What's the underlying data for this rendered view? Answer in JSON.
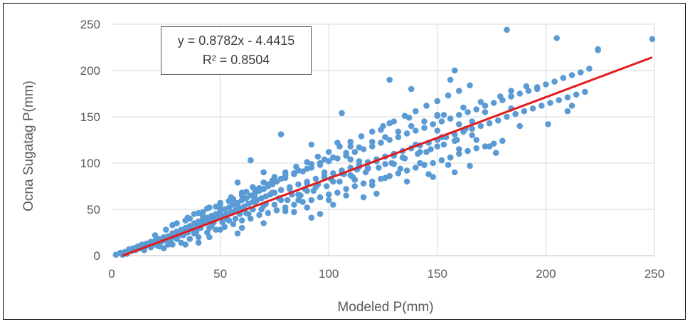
{
  "chart_data": {
    "type": "scatter",
    "title": "",
    "xlabel": "Modeled P(mm)",
    "ylabel": "Ocna Sugatag  P(mm)",
    "xlim": [
      0,
      250
    ],
    "ylim": [
      0,
      250
    ],
    "xticks": [
      "0",
      "50",
      "100",
      "150",
      "200",
      "250"
    ],
    "yticks": [
      "0",
      "50",
      "100",
      "150",
      "200",
      "250"
    ],
    "grid": true,
    "legend": "none",
    "colors": {
      "points": "#5b9bd5",
      "trendline": "#e31a1c",
      "grid": "#d9d9d9",
      "axis": "#bfbfbf"
    },
    "trendline": {
      "type": "linear",
      "slope": 0.8782,
      "intercept": -4.4415,
      "x_range": [
        5,
        249
      ],
      "equation": "y = 0.8782x - 4.4415",
      "r_squared": "R² = 0.8504"
    },
    "points": [
      [
        2,
        1
      ],
      [
        4,
        3
      ],
      [
        5,
        1
      ],
      [
        6,
        4
      ],
      [
        7,
        2
      ],
      [
        8,
        7
      ],
      [
        9,
        5
      ],
      [
        10,
        8
      ],
      [
        11,
        6
      ],
      [
        12,
        10
      ],
      [
        13,
        8
      ],
      [
        14,
        12
      ],
      [
        15,
        9
      ],
      [
        16,
        13
      ],
      [
        17,
        11
      ],
      [
        18,
        15
      ],
      [
        19,
        12
      ],
      [
        20,
        16
      ],
      [
        21,
        14
      ],
      [
        22,
        18
      ],
      [
        23,
        15
      ],
      [
        24,
        20
      ],
      [
        25,
        17
      ],
      [
        26,
        21
      ],
      [
        27,
        19
      ],
      [
        28,
        24
      ],
      [
        29,
        20
      ],
      [
        30,
        26
      ],
      [
        31,
        22
      ],
      [
        32,
        28
      ],
      [
        33,
        25
      ],
      [
        34,
        30
      ],
      [
        35,
        27
      ],
      [
        36,
        32
      ],
      [
        37,
        29
      ],
      [
        38,
        35
      ],
      [
        39,
        31
      ],
      [
        40,
        37
      ],
      [
        41,
        33
      ],
      [
        42,
        39
      ],
      [
        43,
        35
      ],
      [
        44,
        41
      ],
      [
        45,
        37
      ],
      [
        46,
        43
      ],
      [
        47,
        39
      ],
      [
        48,
        45
      ],
      [
        49,
        41
      ],
      [
        50,
        47
      ],
      [
        51,
        43
      ],
      [
        52,
        50
      ],
      [
        53,
        45
      ],
      [
        54,
        52
      ],
      [
        55,
        47
      ],
      [
        56,
        55
      ],
      [
        57,
        49
      ],
      [
        58,
        57
      ],
      [
        59,
        51
      ],
      [
        60,
        60
      ],
      [
        61,
        53
      ],
      [
        62,
        62
      ],
      [
        63,
        56
      ],
      [
        64,
        65
      ],
      [
        65,
        58
      ],
      [
        66,
        67
      ],
      [
        67,
        60
      ],
      [
        68,
        70
      ],
      [
        69,
        62
      ],
      [
        70,
        72
      ],
      [
        71,
        64
      ],
      [
        72,
        75
      ],
      [
        73,
        66
      ],
      [
        74,
        77
      ],
      [
        75,
        68
      ],
      [
        76,
        80
      ],
      [
        78,
        71
      ],
      [
        80,
        84
      ],
      [
        82,
        74
      ],
      [
        84,
        88
      ],
      [
        86,
        77
      ],
      [
        88,
        91
      ],
      [
        90,
        80
      ],
      [
        92,
        95
      ],
      [
        94,
        83
      ],
      [
        96,
        98
      ],
      [
        98,
        86
      ],
      [
        100,
        102
      ],
      [
        102,
        89
      ],
      [
        104,
        105
      ],
      [
        106,
        92
      ],
      [
        108,
        108
      ],
      [
        110,
        95
      ],
      [
        112,
        112
      ],
      [
        114,
        98
      ],
      [
        116,
        115
      ],
      [
        118,
        101
      ],
      [
        120,
        118
      ],
      [
        122,
        104
      ],
      [
        124,
        122
      ],
      [
        126,
        107
      ],
      [
        128,
        125
      ],
      [
        130,
        110
      ],
      [
        132,
        128
      ],
      [
        134,
        113
      ],
      [
        136,
        132
      ],
      [
        138,
        116
      ],
      [
        140,
        135
      ],
      [
        142,
        119
      ],
      [
        144,
        138
      ],
      [
        146,
        122
      ],
      [
        148,
        142
      ],
      [
        150,
        125
      ],
      [
        152,
        145
      ],
      [
        154,
        128
      ],
      [
        156,
        148
      ],
      [
        158,
        131
      ],
      [
        160,
        152
      ],
      [
        162,
        134
      ],
      [
        164,
        155
      ],
      [
        166,
        137
      ],
      [
        168,
        158
      ],
      [
        170,
        140
      ],
      [
        172,
        162
      ],
      [
        174,
        143
      ],
      [
        176,
        165
      ],
      [
        178,
        146
      ],
      [
        180,
        168
      ],
      [
        182,
        150
      ],
      [
        184,
        172
      ],
      [
        186,
        153
      ],
      [
        188,
        175
      ],
      [
        190,
        156
      ],
      [
        192,
        178
      ],
      [
        194,
        159
      ],
      [
        196,
        182
      ],
      [
        198,
        162
      ],
      [
        200,
        185
      ],
      [
        202,
        165
      ],
      [
        204,
        188
      ],
      [
        206,
        168
      ],
      [
        208,
        192
      ],
      [
        210,
        171
      ],
      [
        212,
        195
      ],
      [
        214,
        174
      ],
      [
        216,
        198
      ],
      [
        218,
        177
      ],
      [
        220,
        202
      ],
      [
        224,
        222
      ],
      [
        24,
        8
      ],
      [
        28,
        12
      ],
      [
        32,
        14
      ],
      [
        36,
        18
      ],
      [
        40,
        20
      ],
      [
        44,
        25
      ],
      [
        48,
        28
      ],
      [
        52,
        31
      ],
      [
        56,
        34
      ],
      [
        60,
        38
      ],
      [
        64,
        40
      ],
      [
        68,
        44
      ],
      [
        72,
        46
      ],
      [
        76,
        49
      ],
      [
        80,
        52
      ],
      [
        84,
        55
      ],
      [
        88,
        58
      ],
      [
        92,
        60
      ],
      [
        96,
        63
      ],
      [
        100,
        66
      ],
      [
        104,
        68
      ],
      [
        108,
        72
      ],
      [
        112,
        75
      ],
      [
        116,
        78
      ],
      [
        120,
        80
      ],
      [
        124,
        83
      ],
      [
        128,
        86
      ],
      [
        132,
        89
      ],
      [
        136,
        92
      ],
      [
        140,
        95
      ],
      [
        144,
        98
      ],
      [
        148,
        100
      ],
      [
        152,
        103
      ],
      [
        156,
        106
      ],
      [
        160,
        110
      ],
      [
        164,
        113
      ],
      [
        168,
        116
      ],
      [
        172,
        118
      ],
      [
        176,
        121
      ],
      [
        180,
        124
      ],
      [
        20,
        22
      ],
      [
        25,
        28
      ],
      [
        30,
        35
      ],
      [
        35,
        41
      ],
      [
        40,
        46
      ],
      [
        45,
        52
      ],
      [
        50,
        57
      ],
      [
        55,
        63
      ],
      [
        60,
        68
      ],
      [
        65,
        74
      ],
      [
        70,
        79
      ],
      [
        75,
        85
      ],
      [
        80,
        90
      ],
      [
        85,
        96
      ],
      [
        90,
        101
      ],
      [
        95,
        107
      ],
      [
        100,
        112
      ],
      [
        105,
        118
      ],
      [
        110,
        123
      ],
      [
        115,
        129
      ],
      [
        120,
        134
      ],
      [
        125,
        140
      ],
      [
        130,
        145
      ],
      [
        135,
        151
      ],
      [
        140,
        156
      ],
      [
        145,
        162
      ],
      [
        150,
        167
      ],
      [
        155,
        173
      ],
      [
        160,
        178
      ],
      [
        165,
        184
      ],
      [
        15,
        6
      ],
      [
        18,
        9
      ],
      [
        21,
        11
      ],
      [
        27,
        16
      ],
      [
        33,
        22
      ],
      [
        39,
        26
      ],
      [
        45,
        30
      ],
      [
        51,
        36
      ],
      [
        57,
        40
      ],
      [
        63,
        45
      ],
      [
        69,
        50
      ],
      [
        75,
        55
      ],
      [
        81,
        60
      ],
      [
        87,
        65
      ],
      [
        93,
        70
      ],
      [
        99,
        75
      ],
      [
        105,
        80
      ],
      [
        111,
        85
      ],
      [
        117,
        90
      ],
      [
        123,
        95
      ],
      [
        129,
        100
      ],
      [
        135,
        105
      ],
      [
        141,
        110
      ],
      [
        147,
        115
      ],
      [
        153,
        120
      ],
      [
        159,
        125
      ],
      [
        36,
        40
      ],
      [
        42,
        47
      ],
      [
        48,
        53
      ],
      [
        54,
        59
      ],
      [
        60,
        65
      ],
      [
        66,
        71
      ],
      [
        72,
        77
      ],
      [
        78,
        83
      ],
      [
        84,
        89
      ],
      [
        90,
        94
      ],
      [
        96,
        100
      ],
      [
        102,
        106
      ],
      [
        108,
        111
      ],
      [
        114,
        117
      ],
      [
        120,
        123
      ],
      [
        126,
        128
      ],
      [
        132,
        134
      ],
      [
        138,
        140
      ],
      [
        144,
        145
      ],
      [
        150,
        151
      ],
      [
        30,
        18
      ],
      [
        38,
        24
      ],
      [
        46,
        32
      ],
      [
        54,
        38
      ],
      [
        62,
        46
      ],
      [
        70,
        54
      ],
      [
        78,
        60
      ],
      [
        86,
        66
      ],
      [
        94,
        74
      ],
      [
        102,
        80
      ],
      [
        110,
        87
      ],
      [
        118,
        94
      ],
      [
        126,
        99
      ],
      [
        134,
        106
      ],
      [
        142,
        112
      ],
      [
        150,
        118
      ],
      [
        158,
        124
      ],
      [
        166,
        130
      ],
      [
        28,
        33
      ],
      [
        34,
        38
      ],
      [
        42,
        43
      ],
      [
        50,
        50
      ],
      [
        58,
        55
      ],
      [
        66,
        62
      ],
      [
        74,
        68
      ],
      [
        82,
        72
      ],
      [
        90,
        78
      ],
      [
        98,
        84
      ],
      [
        106,
        89
      ],
      [
        114,
        96
      ],
      [
        122,
        102
      ],
      [
        130,
        108
      ],
      [
        35,
        25
      ],
      [
        41,
        30
      ],
      [
        47,
        36
      ],
      [
        53,
        40
      ],
      [
        59,
        45
      ],
      [
        65,
        50
      ],
      [
        71,
        56
      ],
      [
        77,
        62
      ],
      [
        83,
        66
      ],
      [
        89,
        72
      ],
      [
        95,
        77
      ],
      [
        101,
        83
      ],
      [
        107,
        88
      ],
      [
        113,
        93
      ],
      [
        38,
        45
      ],
      [
        44,
        51
      ],
      [
        50,
        55
      ],
      [
        56,
        61
      ],
      [
        62,
        69
      ],
      [
        68,
        73
      ],
      [
        74,
        81
      ],
      [
        80,
        87
      ],
      [
        86,
        92
      ],
      [
        92,
        99
      ],
      [
        98,
        104
      ],
      [
        64,
        103
      ],
      [
        58,
        79
      ],
      [
        78,
        131
      ],
      [
        92,
        120
      ],
      [
        106,
        154
      ],
      [
        128,
        190
      ],
      [
        138,
        180
      ],
      [
        128,
        143
      ],
      [
        137,
        149
      ],
      [
        156,
        190
      ],
      [
        158,
        200
      ],
      [
        150,
        152
      ],
      [
        153,
        152
      ],
      [
        162,
        160
      ],
      [
        170,
        166
      ],
      [
        182,
        244
      ],
      [
        184,
        178
      ],
      [
        184,
        172
      ],
      [
        179,
        172
      ],
      [
        184,
        159
      ],
      [
        191,
        183
      ],
      [
        205,
        235
      ],
      [
        224,
        223
      ],
      [
        249,
        234
      ],
      [
        212,
        162
      ],
      [
        210,
        156
      ],
      [
        201,
        142
      ],
      [
        188,
        140
      ],
      [
        177,
        111
      ],
      [
        165,
        97
      ],
      [
        158,
        90
      ],
      [
        156,
        106
      ],
      [
        148,
        85
      ],
      [
        146,
        88
      ],
      [
        130,
        99
      ],
      [
        133,
        94
      ],
      [
        122,
        67
      ],
      [
        116,
        63
      ],
      [
        108,
        65
      ],
      [
        92,
        41
      ],
      [
        96,
        45
      ],
      [
        102,
        55
      ],
      [
        84,
        47
      ],
      [
        70,
        35
      ],
      [
        58,
        24
      ],
      [
        86,
        60
      ],
      [
        124,
        136
      ],
      [
        130,
        110
      ],
      [
        166,
        145
      ],
      [
        172,
        155
      ],
      [
        160,
        142
      ],
      [
        152,
        128
      ],
      [
        145,
        112
      ],
      [
        140,
        120
      ],
      [
        118,
        95
      ],
      [
        112,
        82
      ],
      [
        100,
        60
      ],
      [
        90,
        52
      ],
      [
        80,
        48
      ],
      [
        136,
        80
      ],
      [
        142,
        100
      ],
      [
        150,
        135
      ],
      [
        168,
        125
      ],
      [
        155,
        98
      ],
      [
        174,
        118
      ],
      [
        196,
        180
      ],
      [
        160,
        115
      ],
      [
        163,
        137
      ],
      [
        126,
        84
      ],
      [
        120,
        76
      ],
      [
        110,
        104
      ],
      [
        104,
        122
      ],
      [
        110,
        118
      ],
      [
        114,
        102
      ],
      [
        98,
        90
      ],
      [
        90,
        70
      ],
      [
        70,
        90
      ],
      [
        66,
        58
      ],
      [
        60,
        30
      ],
      [
        50,
        28
      ],
      [
        45,
        20
      ],
      [
        40,
        14
      ],
      [
        34,
        12
      ],
      [
        26,
        12
      ],
      [
        22,
        10
      ]
    ]
  }
}
